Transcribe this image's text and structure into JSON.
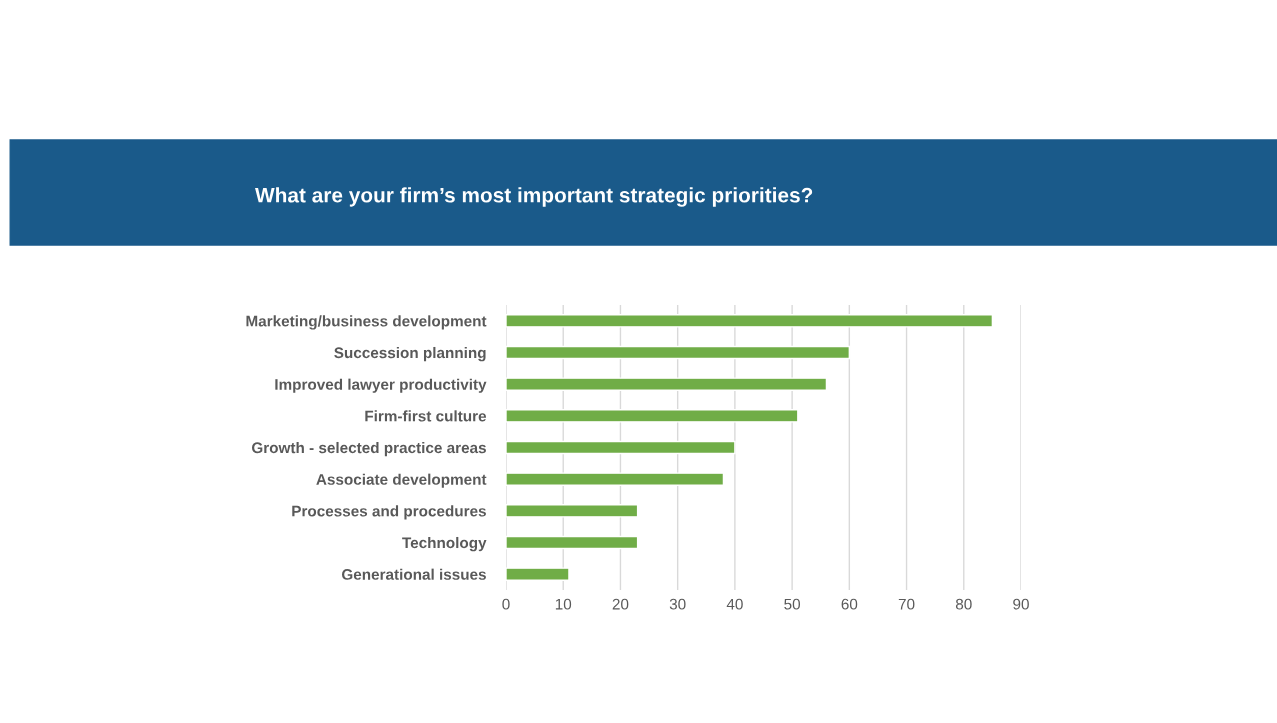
{
  "chart_data": {
    "type": "bar",
    "orientation": "horizontal",
    "title": "What are your firm’s most important strategic priorities?",
    "categories": [
      "Marketing/business development",
      "Succession planning",
      "Improved lawyer productivity",
      "Firm-first culture",
      "Growth - selected practice areas",
      "Associate development",
      "Processes and procedures",
      "Technology",
      "Generational issues"
    ],
    "values": [
      85,
      60,
      56,
      51,
      40,
      38,
      23,
      23,
      11
    ],
    "color": "#70ad47",
    "xlim": [
      0,
      90
    ],
    "xticks": [
      0,
      10,
      20,
      30,
      40,
      50,
      60,
      70,
      80,
      90
    ],
    "grid": "x"
  }
}
